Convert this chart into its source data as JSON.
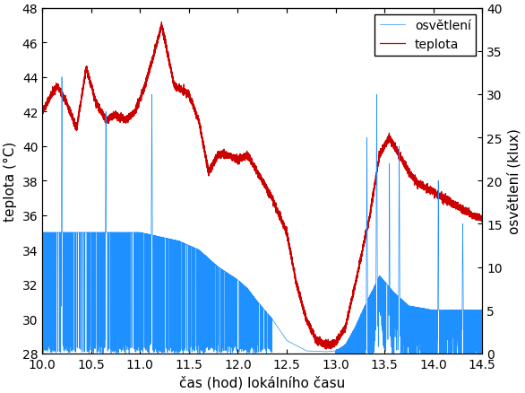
{
  "xlabel": "čas (hod) lokálního času",
  "ylabel_left": "teplota (°C)",
  "ylabel_right": "osvětlení (klux)",
  "xlim": [
    10.0,
    14.5
  ],
  "ylim_left": [
    28,
    48
  ],
  "ylim_right": [
    0,
    40
  ],
  "xticks": [
    10.0,
    10.5,
    11.0,
    11.5,
    12.0,
    12.5,
    13.0,
    13.5,
    14.0,
    14.5
  ],
  "yticks_left": [
    28,
    30,
    32,
    34,
    36,
    38,
    40,
    42,
    44,
    46,
    48
  ],
  "yticks_right": [
    0,
    5,
    10,
    15,
    20,
    25,
    30,
    35,
    40
  ],
  "color_temp": "#cc0000",
  "color_light": "#1e90ff",
  "legend_labels": [
    "osvětlení",
    "teplota"
  ],
  "background_color": "#ffffff",
  "figure_bg": "#ffffff"
}
